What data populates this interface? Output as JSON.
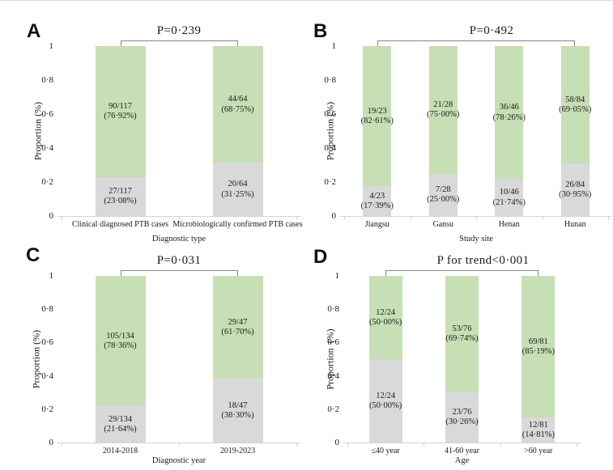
{
  "figure": {
    "background": "#ffffff",
    "colors": {
      "green": "#c6dfb4",
      "gray": "#d9d9d9",
      "axis": "#d3d3d3",
      "bracket": "#848484",
      "text": "#1a1a1a"
    }
  },
  "chart_data": [
    {
      "type": "bar",
      "subtype": "stacked-proportion",
      "panel": "A",
      "p_label": "P=0·239",
      "xlabel": "Diagnostic type",
      "ylabel": "Proportion (%)",
      "ylim": [
        0,
        1
      ],
      "grid": false,
      "legend": false,
      "ytick_values": [
        1,
        0.8,
        0.6,
        0.4,
        0.2,
        0
      ],
      "ytick_labels": [
        "1",
        "0·8",
        "0·6",
        "0·4",
        "0·2",
        "0"
      ],
      "bars": [
        {
          "category": "Clinical diagnosed PTB cases",
          "segments": [
            {
              "color": "gray",
              "value": 0.2308,
              "label": "27/117\n(23·08%)"
            },
            {
              "color": "green",
              "value": 0.7692,
              "label": "90/117\n(76·92%)"
            }
          ]
        },
        {
          "category": "Microbiologically confirmed PTB cases",
          "segments": [
            {
              "color": "gray",
              "value": 0.3125,
              "label": "20/64\n(31·25%)"
            },
            {
              "color": "green",
              "value": 0.6875,
              "label": "44/64\n(68·75%)"
            }
          ]
        }
      ]
    },
    {
      "type": "bar",
      "subtype": "stacked-proportion",
      "panel": "B",
      "p_label": "P=0·492",
      "xlabel": "Study site",
      "ylabel": "Proportion (%)",
      "ylim": [
        0,
        1
      ],
      "grid": false,
      "legend": false,
      "ytick_values": [
        1,
        0.8,
        0.6,
        0.4,
        0.2,
        0
      ],
      "ytick_labels": [
        "1",
        "0·8",
        "0·6",
        "0·4",
        "0·2",
        "0"
      ],
      "bars": [
        {
          "category": "Jiangsu",
          "segments": [
            {
              "color": "gray",
              "value": 0.1739,
              "label": "4/23\n(17·39%)"
            },
            {
              "color": "green",
              "value": 0.8261,
              "label": "19/23\n(82·61%)"
            }
          ]
        },
        {
          "category": "Gansu",
          "segments": [
            {
              "color": "gray",
              "value": 0.25,
              "label": "7/28\n(25·00%)"
            },
            {
              "color": "green",
              "value": 0.75,
              "label": "21/28\n(75·00%)"
            }
          ]
        },
        {
          "category": "Henan",
          "segments": [
            {
              "color": "gray",
              "value": 0.2174,
              "label": "10/46\n(21·74%)"
            },
            {
              "color": "green",
              "value": 0.7826,
              "label": "36/46\n(78·26%)"
            }
          ]
        },
        {
          "category": "Hunan",
          "segments": [
            {
              "color": "gray",
              "value": 0.3095,
              "label": "26/84\n(30·95%)"
            },
            {
              "color": "green",
              "value": 0.6905,
              "label": "58/84\n(69·05%)"
            }
          ]
        }
      ]
    },
    {
      "type": "bar",
      "subtype": "stacked-proportion",
      "panel": "C",
      "p_label": "P=0·031",
      "xlabel": "Diagnostic year",
      "ylabel": "Proportion (%)",
      "ylim": [
        0,
        1
      ],
      "grid": false,
      "legend": false,
      "ytick_values": [
        1,
        0.8,
        0.6,
        0.4,
        0.2,
        0
      ],
      "ytick_labels": [
        "1",
        "0·8",
        "0·6",
        "0·4",
        "0·2",
        "0"
      ],
      "bars": [
        {
          "category": "2014-2018",
          "segments": [
            {
              "color": "gray",
              "value": 0.2164,
              "label": "29/134\n(21·64%)"
            },
            {
              "color": "green",
              "value": 0.7836,
              "label": "105/134\n(78·36%)"
            }
          ]
        },
        {
          "category": "2019-2023",
          "segments": [
            {
              "color": "gray",
              "value": 0.383,
              "label": "18/47\n(38·30%)"
            },
            {
              "color": "green",
              "value": 0.617,
              "label": "29/47\n(61·70%)"
            }
          ]
        }
      ]
    },
    {
      "type": "bar",
      "subtype": "stacked-proportion",
      "panel": "D",
      "p_label": "P for trend<0·001",
      "xlabel": "Age",
      "ylabel": "Proportion  (%)",
      "ylim": [
        0,
        1
      ],
      "grid": false,
      "legend": false,
      "ytick_values": [
        1,
        0.8,
        0.6,
        0.4,
        0.2,
        0
      ],
      "ytick_labels": [
        "1",
        "0·8",
        "0·6",
        "0·4",
        "0·2",
        "0"
      ],
      "bars": [
        {
          "category": "≤40 year",
          "segments": [
            {
              "color": "gray",
              "value": 0.5,
              "label": "12/24\n(50·00%)"
            },
            {
              "color": "green",
              "value": 0.5,
              "label": "12/24\n(50·00%)"
            }
          ]
        },
        {
          "category": "41-60 year",
          "segments": [
            {
              "color": "gray",
              "value": 0.3026,
              "label": "23/76\n(30·26%)"
            },
            {
              "color": "green",
              "value": 0.6974,
              "label": "53/76\n(69·74%)"
            }
          ]
        },
        {
          "category": ">60 year",
          "segments": [
            {
              "color": "gray",
              "value": 0.1481,
              "label": "12/81\n(14·81%)"
            },
            {
              "color": "green",
              "value": 0.8519,
              "label": "69/81\n(85·19%)"
            }
          ]
        }
      ]
    }
  ]
}
